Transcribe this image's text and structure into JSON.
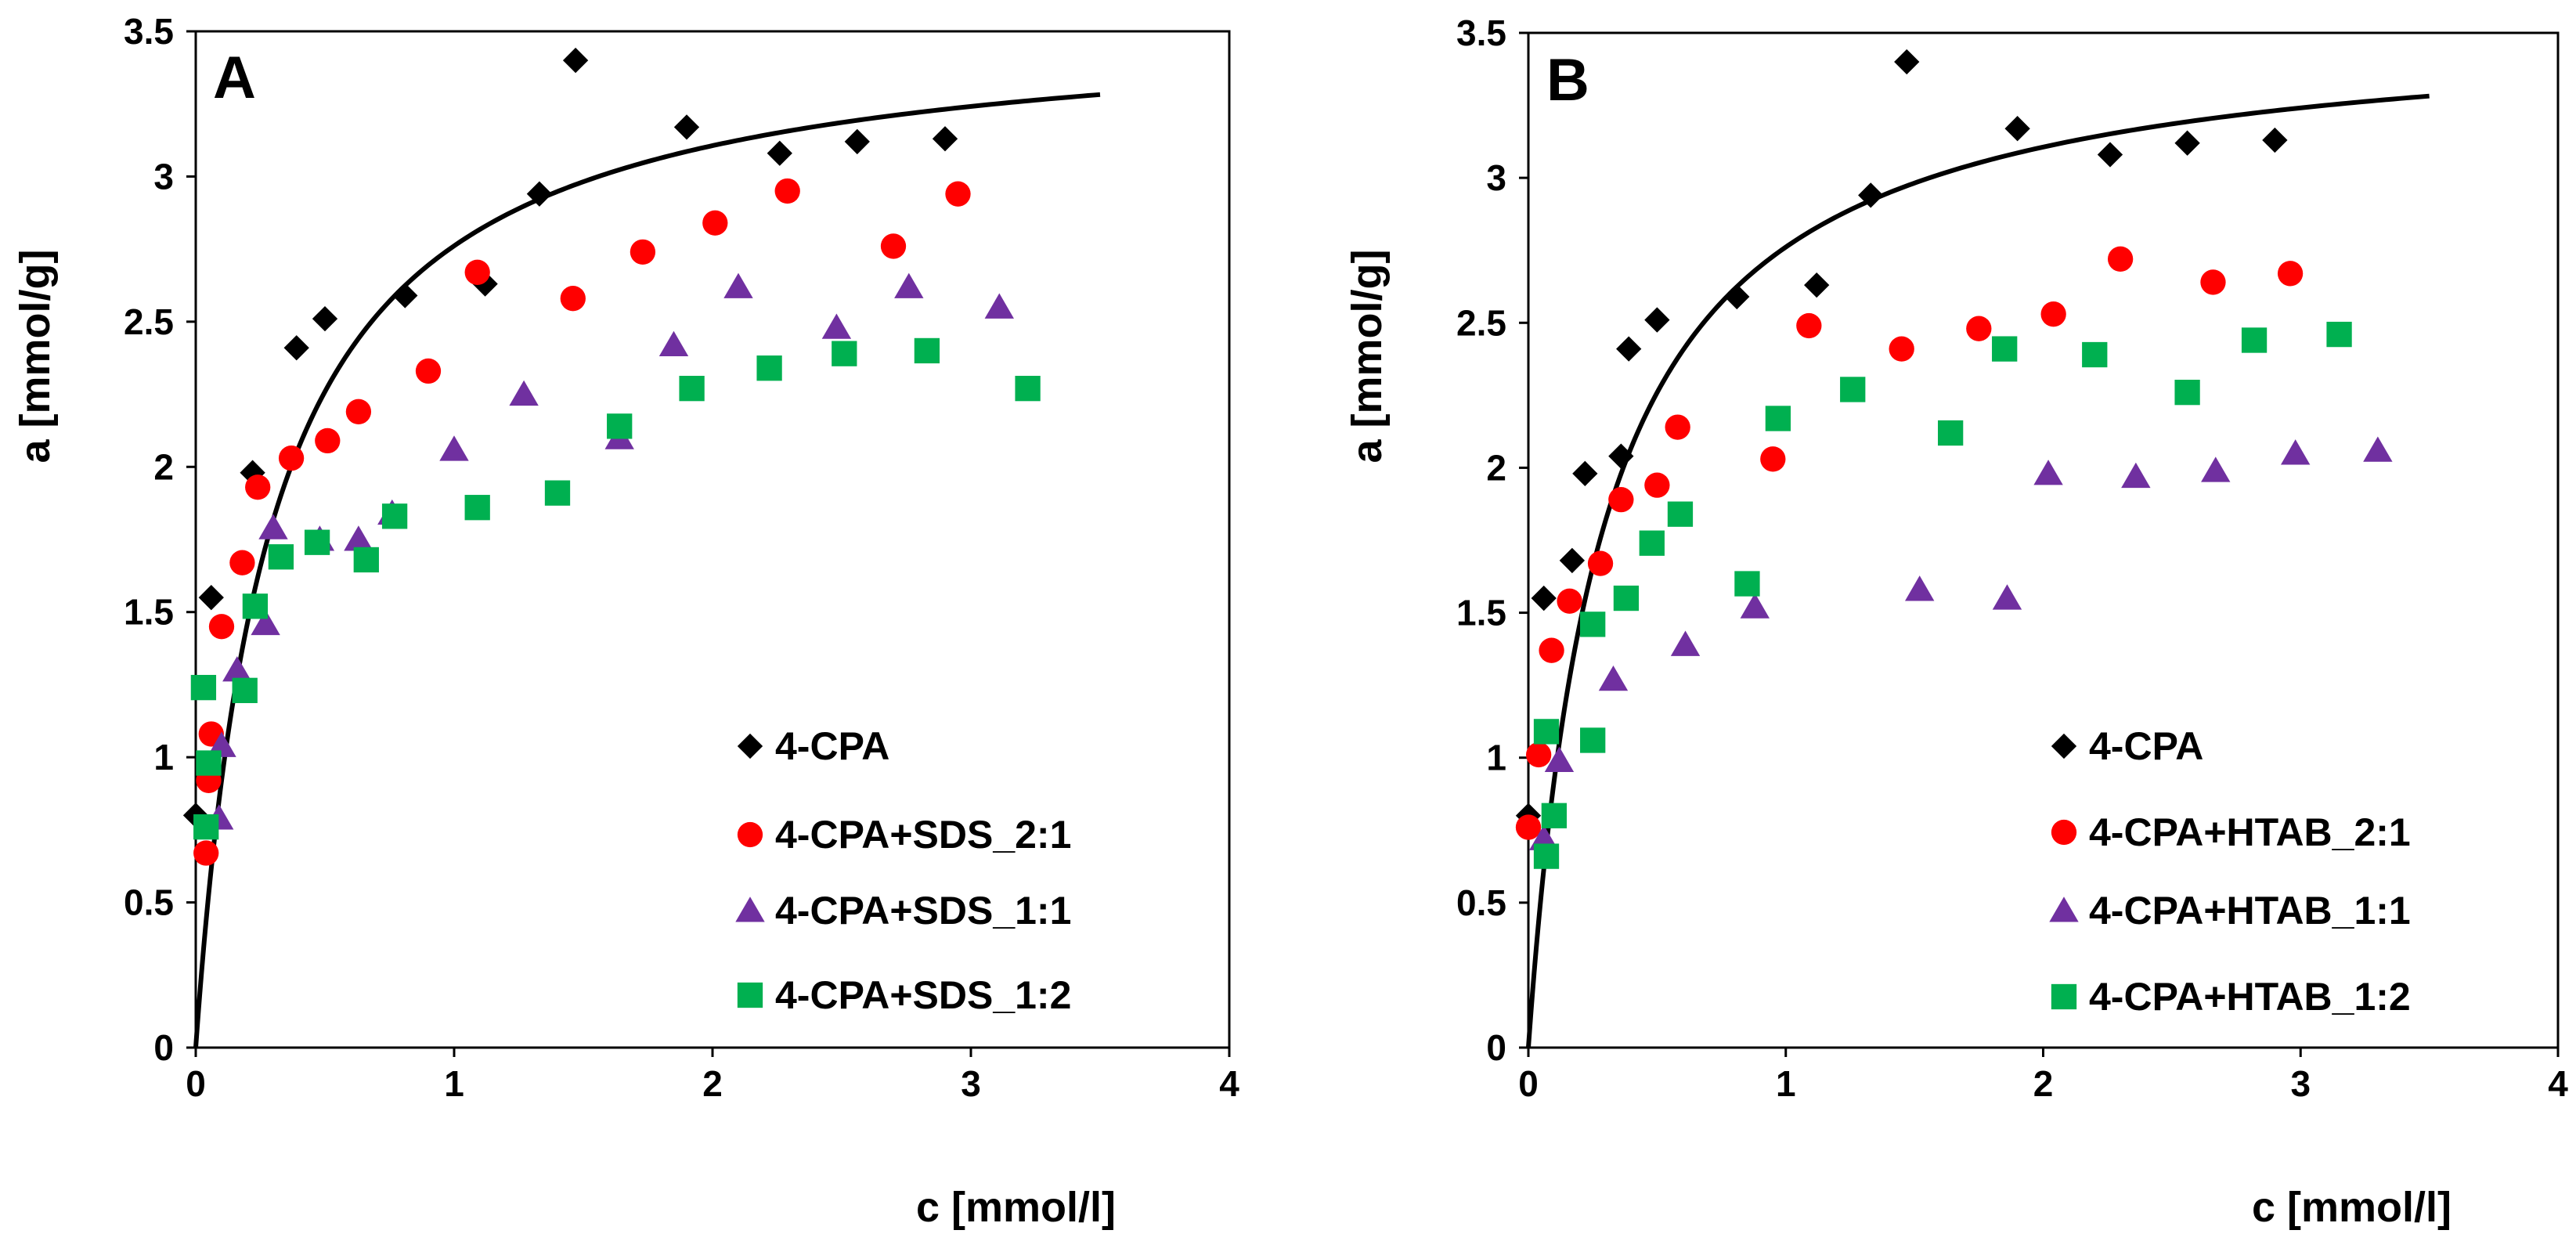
{
  "chart_data": [
    {
      "type": "scatter",
      "panel": "A",
      "xlabel": "c [mmol/l]",
      "ylabel": "a [mmol/g]",
      "xlim": [
        0,
        4
      ],
      "ylim": [
        0,
        3.5
      ],
      "xticks": [
        "0",
        "1",
        "2",
        "3",
        "4"
      ],
      "yticks": [
        "0",
        "0.5",
        "1",
        "1.5",
        "2",
        "2.5",
        "3",
        "3.5"
      ],
      "legend_position": "bottom-right",
      "fit_line": {
        "name": "4-CPA fit",
        "type": "langmuir",
        "qmax": 3.55,
        "K": 3.5,
        "x_range": [
          0,
          3.5
        ]
      },
      "series": [
        {
          "name": "4-CPA",
          "marker": "diamond",
          "color": "#000000",
          "points": [
            [
              0.0,
              0.8
            ],
            [
              0.06,
              1.55
            ],
            [
              0.22,
              1.98
            ],
            [
              0.39,
              2.41
            ],
            [
              0.5,
              2.51
            ],
            [
              0.81,
              2.59
            ],
            [
              1.12,
              2.63
            ],
            [
              1.33,
              2.94
            ],
            [
              1.47,
              3.4
            ],
            [
              1.9,
              3.17
            ],
            [
              2.26,
              3.08
            ],
            [
              2.56,
              3.12
            ],
            [
              2.9,
              3.13
            ]
          ]
        },
        {
          "name": "4-CPA+SDS_2:1",
          "marker": "circle",
          "color": "#ff0000",
          "points": [
            [
              0.04,
              0.67
            ],
            [
              0.05,
              0.92
            ],
            [
              0.06,
              1.08
            ],
            [
              0.1,
              1.45
            ],
            [
              0.18,
              1.67
            ],
            [
              0.24,
              1.93
            ],
            [
              0.37,
              2.03
            ],
            [
              0.51,
              2.09
            ],
            [
              0.63,
              2.19
            ],
            [
              0.9,
              2.33
            ],
            [
              1.09,
              2.67
            ],
            [
              1.46,
              2.58
            ],
            [
              1.73,
              2.74
            ],
            [
              2.01,
              2.84
            ],
            [
              2.29,
              2.95
            ],
            [
              2.7,
              2.76
            ],
            [
              2.95,
              2.94
            ]
          ]
        },
        {
          "name": "4-CPA+SDS_1:1",
          "marker": "triangle",
          "color": "#7030a0",
          "points": [
            [
              0.09,
              0.79
            ],
            [
              0.1,
              1.04
            ],
            [
              0.16,
              1.3
            ],
            [
              0.27,
              1.46
            ],
            [
              0.3,
              1.79
            ],
            [
              0.48,
              1.75
            ],
            [
              0.63,
              1.75
            ],
            [
              0.76,
              1.84
            ],
            [
              1.0,
              2.06
            ],
            [
              1.27,
              2.25
            ],
            [
              1.64,
              2.1
            ],
            [
              1.85,
              2.42
            ],
            [
              2.1,
              2.62
            ],
            [
              2.48,
              2.48
            ],
            [
              2.76,
              2.62
            ],
            [
              3.11,
              2.55
            ]
          ]
        },
        {
          "name": "4-CPA+SDS_1:2",
          "marker": "square",
          "color": "#00b050",
          "points": [
            [
              0.03,
              1.24
            ],
            [
              0.04,
              0.76
            ],
            [
              0.05,
              0.98
            ],
            [
              0.19,
              1.23
            ],
            [
              0.23,
              1.52
            ],
            [
              0.33,
              1.69
            ],
            [
              0.47,
              1.74
            ],
            [
              0.66,
              1.68
            ],
            [
              0.77,
              1.83
            ],
            [
              1.09,
              1.86
            ],
            [
              1.4,
              1.91
            ],
            [
              1.64,
              2.14
            ],
            [
              1.92,
              2.27
            ],
            [
              2.22,
              2.34
            ],
            [
              2.51,
              2.39
            ],
            [
              2.83,
              2.4
            ],
            [
              3.22,
              2.27
            ]
          ]
        }
      ]
    },
    {
      "type": "scatter",
      "panel": "B",
      "xlabel": "c [mmol/l]",
      "ylabel": "a [mmol/g]",
      "xlim": [
        0,
        4
      ],
      "ylim": [
        0,
        3.5
      ],
      "xticks": [
        "0",
        "1",
        "2",
        "3",
        "4"
      ],
      "yticks": [
        "0",
        "0.5",
        "1",
        "1.5",
        "2",
        "2.5",
        "3",
        "3.5"
      ],
      "legend_position": "bottom-right",
      "fit_line": {
        "name": "4-CPA fit",
        "type": "langmuir",
        "qmax": 3.55,
        "K": 3.5,
        "x_range": [
          0,
          3.5
        ]
      },
      "series": [
        {
          "name": "4-CPA",
          "marker": "diamond",
          "color": "#000000",
          "points": [
            [
              0.0,
              0.8
            ],
            [
              0.06,
              1.55
            ],
            [
              0.17,
              1.68
            ],
            [
              0.22,
              1.98
            ],
            [
              0.36,
              2.04
            ],
            [
              0.39,
              2.41
            ],
            [
              0.5,
              2.51
            ],
            [
              0.81,
              2.59
            ],
            [
              1.12,
              2.63
            ],
            [
              1.33,
              2.94
            ],
            [
              1.47,
              3.4
            ],
            [
              1.9,
              3.17
            ],
            [
              2.26,
              3.08
            ],
            [
              2.56,
              3.12
            ],
            [
              2.9,
              3.13
            ]
          ]
        },
        {
          "name": "4-CPA+HTAB_2:1",
          "marker": "circle",
          "color": "#ff0000",
          "points": [
            [
              0.0,
              0.76
            ],
            [
              0.04,
              1.01
            ],
            [
              0.09,
              1.37
            ],
            [
              0.16,
              1.54
            ],
            [
              0.28,
              1.67
            ],
            [
              0.36,
              1.89
            ],
            [
              0.5,
              1.94
            ],
            [
              0.58,
              2.14
            ],
            [
              0.95,
              2.03
            ],
            [
              1.09,
              2.49
            ],
            [
              1.45,
              2.41
            ],
            [
              1.75,
              2.48
            ],
            [
              2.04,
              2.53
            ],
            [
              2.3,
              2.72
            ],
            [
              2.66,
              2.64
            ],
            [
              2.96,
              2.67
            ]
          ]
        },
        {
          "name": "4-CPA+HTAB_1:1",
          "marker": "triangle",
          "color": "#7030a0",
          "points": [
            [
              0.06,
              0.72
            ],
            [
              0.12,
              0.99
            ],
            [
              0.33,
              1.27
            ],
            [
              0.61,
              1.39
            ],
            [
              0.88,
              1.52
            ],
            [
              1.52,
              1.58
            ],
            [
              1.86,
              1.55
            ],
            [
              2.02,
              1.98
            ],
            [
              2.36,
              1.97
            ],
            [
              2.67,
              1.99
            ],
            [
              2.98,
              2.05
            ],
            [
              3.3,
              2.06
            ]
          ]
        },
        {
          "name": "4-CPA+HTAB_1:2",
          "marker": "square",
          "color": "#00b050",
          "points": [
            [
              0.07,
              0.66
            ],
            [
              0.07,
              1.09
            ],
            [
              0.1,
              0.8
            ],
            [
              0.25,
              1.06
            ],
            [
              0.25,
              1.46
            ],
            [
              0.38,
              1.55
            ],
            [
              0.48,
              1.74
            ],
            [
              0.59,
              1.84
            ],
            [
              0.85,
              1.6
            ],
            [
              0.97,
              2.17
            ],
            [
              1.26,
              2.27
            ],
            [
              1.64,
              2.12
            ],
            [
              1.85,
              2.41
            ],
            [
              2.2,
              2.39
            ],
            [
              2.56,
              2.26
            ],
            [
              2.82,
              2.44
            ],
            [
              3.15,
              2.46
            ]
          ]
        }
      ]
    }
  ]
}
